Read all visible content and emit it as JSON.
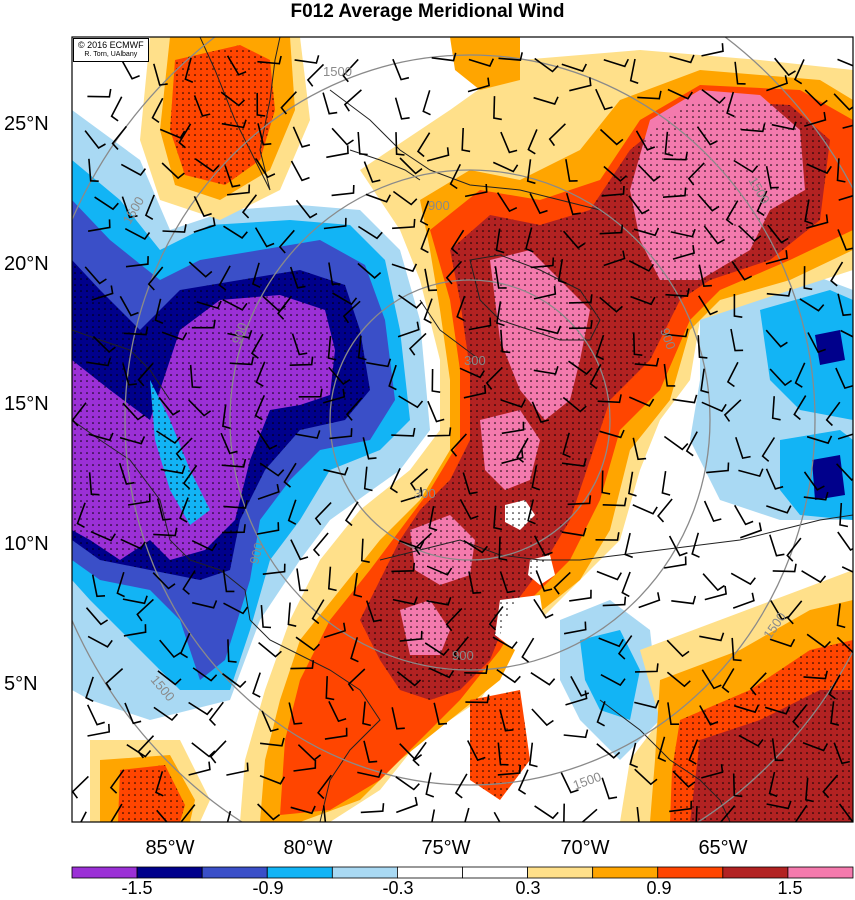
{
  "title": "F012 Average Meridional Wind",
  "credit": {
    "line1": "© 2016 ECMWF",
    "line2": "R. Torn, UAlbany"
  },
  "lat_labels": [
    "25°N",
    "20°N",
    "15°N",
    "10°N",
    "5°N"
  ],
  "lon_labels": [
    "85°W",
    "80°W",
    "75°W",
    "70°W",
    "65°W"
  ],
  "contour_labels": [
    "1500",
    "1500",
    "1500",
    "1500",
    "1500",
    "1500",
    "900",
    "900",
    "900",
    "900",
    "900",
    "300",
    "300"
  ],
  "colorbar": {
    "tick_labels": [
      "-1.5",
      "-0.9",
      "-0.3",
      "0.3",
      "0.9",
      "1.5"
    ],
    "colors": [
      "#9b30d6",
      "#00008b",
      "#3a4fc8",
      "#12b4f5",
      "#a9d9f3",
      "#ffffff",
      "#ffffff",
      "#ffe08a",
      "#ffa500",
      "#ff4500",
      "#b22222",
      "#f47aad"
    ]
  },
  "map_colors": {
    "purple": "#9b30d6",
    "navy": "#00008b",
    "blue": "#3a4fc8",
    "cyan": "#12b4f5",
    "lightblue": "#a9d9f3",
    "white": "#ffffff",
    "yellow": "#ffe08a",
    "orange": "#ffa500",
    "redorange": "#ff4500",
    "darkred": "#b22222",
    "pink": "#f47aad"
  }
}
